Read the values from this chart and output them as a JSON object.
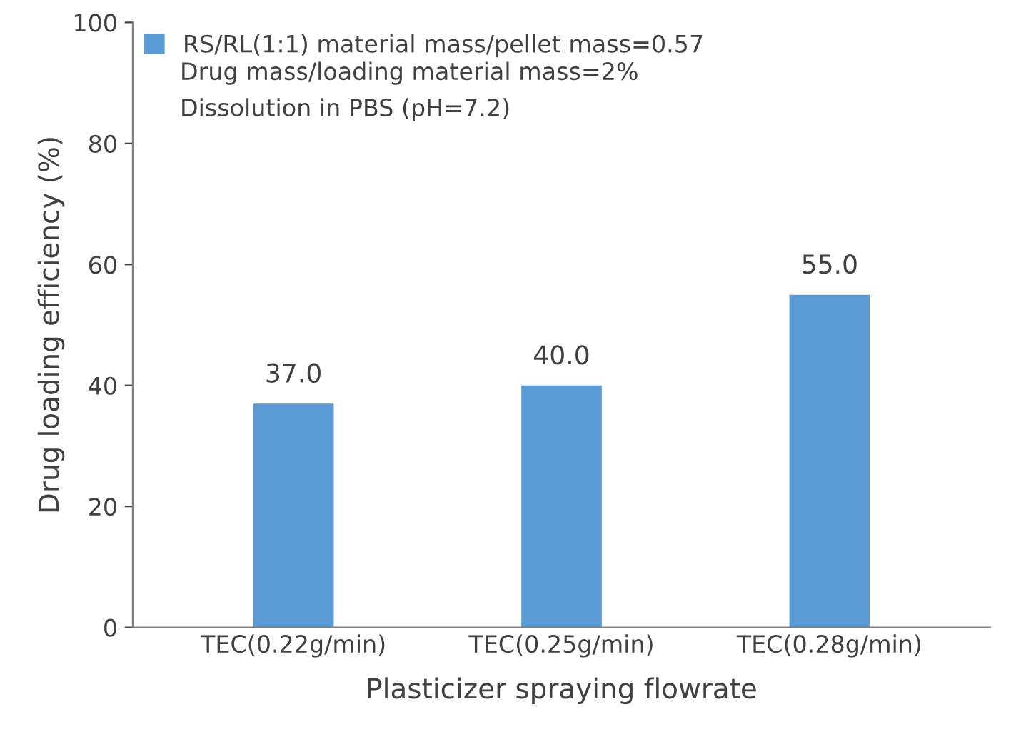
{
  "chart_data": {
    "type": "bar",
    "xlabel": "Plasticizer spraying flowrate",
    "ylabel": "Drug loading efficiency (%)",
    "categories": [
      "TEC(0.22g/min)",
      "TEC(0.25g/min)",
      "TEC(0.28g/min)"
    ],
    "series": [
      {
        "name": "RS/RL(1:1) material mass/pellet mass=0.57",
        "color": "#5b9bd5",
        "values": [
          37,
          40,
          55
        ],
        "value_labels": [
          "37.0",
          "40.0",
          "55.0"
        ]
      }
    ],
    "annotations": [
      "Drug mass/loading material mass=2%",
      "Dissolution in PBS (pH=7.2)"
    ],
    "ylim": [
      0,
      100
    ],
    "yticks": [
      0,
      20,
      40,
      60,
      80,
      100
    ],
    "grid": false,
    "legend": "top left"
  }
}
